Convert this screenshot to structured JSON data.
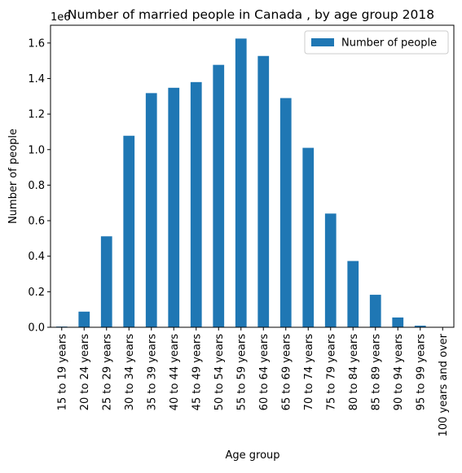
{
  "chart_data": {
    "type": "bar",
    "title": "Number of married people in Canada , by age group 2018",
    "xlabel": "Age group",
    "ylabel": "Number of people",
    "offset_text": "1e6",
    "categories": [
      "15 to 19 years",
      "20 to 24 years",
      "25 to 29 years",
      "30 to 34 years",
      "35 to 39 years",
      "40 to 44 years",
      "45 to 49 years",
      "50 to 54 years",
      "55 to 59 years",
      "60 to 64 years",
      "65 to 69 years",
      "70 to 74 years",
      "75 to 79 years",
      "80 to 84 years",
      "85 to 89 years",
      "90 to 94 years",
      "95 to 99 years",
      "100 years and over"
    ],
    "series": [
      {
        "name": "Number of people",
        "color": "#1f77b4",
        "values": [
          4000,
          88000,
          512000,
          1078000,
          1318000,
          1348000,
          1380000,
          1477000,
          1625000,
          1527000,
          1290000,
          1010000,
          640000,
          373000,
          183000,
          55000,
          9000,
          1000
        ]
      }
    ],
    "ylim": [
      0,
      1700000
    ],
    "yticks": [
      0,
      200000,
      400000,
      600000,
      800000,
      1000000,
      1200000,
      1400000,
      1600000
    ],
    "ytick_labels": [
      "0.0",
      "0.2",
      "0.4",
      "0.6",
      "0.8",
      "1.0",
      "1.2",
      "1.4",
      "1.6"
    ],
    "legend_position": "top-right",
    "grid": false
  }
}
